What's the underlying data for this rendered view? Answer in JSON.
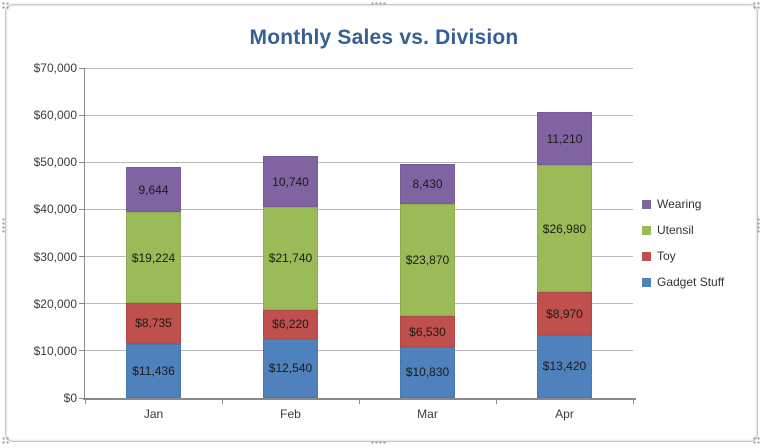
{
  "chart_data": {
    "type": "bar",
    "stacked": true,
    "title": "Monthly Sales vs. Division",
    "categories": [
      "Jan",
      "Feb",
      "Mar",
      "Apr"
    ],
    "series": [
      {
        "name": "Gadget Stuff",
        "color": "#4f81bd",
        "values": [
          11436,
          12540,
          10830,
          13420
        ],
        "data_labels": [
          "$11,436",
          "$12,540",
          "$10,830",
          "$13,420"
        ]
      },
      {
        "name": "Toy",
        "color": "#c0504d",
        "values": [
          8735,
          6220,
          6530,
          8970
        ],
        "data_labels": [
          "$8,735",
          "$6,220",
          "$6,530",
          "$8,970"
        ]
      },
      {
        "name": "Utensil",
        "color": "#9bbb59",
        "values": [
          19224,
          21740,
          23870,
          26980
        ],
        "data_labels": [
          "$19,224",
          "$21,740",
          "$23,870",
          "$26,980"
        ]
      },
      {
        "name": "Wearing",
        "color": "#8064a2",
        "values": [
          9644,
          10740,
          8430,
          11210
        ],
        "data_labels": [
          "9,644",
          "10,740",
          "8,430",
          "11,210"
        ]
      }
    ],
    "y_axis": {
      "min": 0,
      "max": 70000,
      "step": 10000,
      "tick_labels": [
        "$0",
        "$10,000",
        "$20,000",
        "$30,000",
        "$40,000",
        "$50,000",
        "$60,000",
        "$70,000"
      ]
    },
    "x_axis": {
      "tick_labels": [
        "Jan",
        "Feb",
        "Mar",
        "Apr"
      ]
    },
    "legend": {
      "position": "right",
      "entries": [
        "Wearing",
        "Utensil",
        "Toy",
        "Gadget Stuff"
      ]
    },
    "grid": true
  },
  "colors": {
    "title": "#376092",
    "axis_text": "#3c3c3c",
    "data_label_text": "#1a1a1a",
    "gridline": "#b9b9b9",
    "axis_line": "#8a8a8a",
    "frame_border": "#c6c6c6"
  }
}
